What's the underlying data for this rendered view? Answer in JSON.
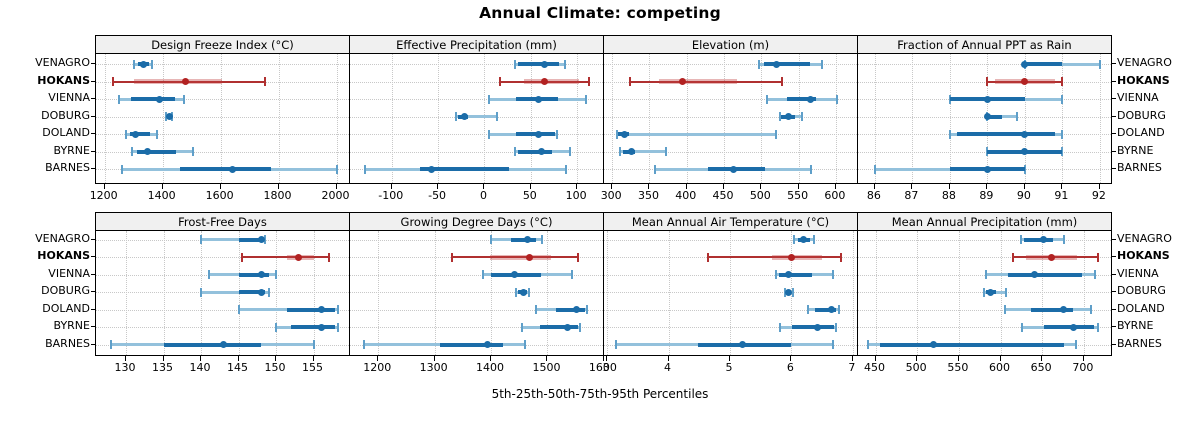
{
  "title": "Annual Climate: competing",
  "caption": "5th-25th-50th-75th-95th Percentiles",
  "colors": {
    "normal_dark": "#1b6ca8",
    "normal_light": "#93c1dc",
    "normal_cap": "#5f9fc9",
    "highlight_dark": "#b22222",
    "highlight_line": "#b03030",
    "highlight_band": "rgba(193,62,62,0.38)",
    "grid": "#c8c8c8",
    "strip_bg": "#f0f0f0",
    "border": "#000000"
  },
  "chart_data": {
    "type": "dotplot-percentiles",
    "percentile_labels": [
      "5th",
      "25th",
      "50th",
      "75th",
      "95th"
    ],
    "rows": [
      "VENAGRO",
      "HOKANS",
      "VIENNA",
      "DOBURG",
      "DOLAND",
      "BYRNE",
      "BARNES"
    ],
    "highlight_row": "HOKANS",
    "grid": "dotted",
    "legend_position": "none",
    "panels": [
      {
        "title": "Design Freeze Index (°C)",
        "grid_row": 0,
        "grid_col": 0,
        "xlim": [
          1170,
          2050
        ],
        "ticks": [
          1200,
          1400,
          1600,
          1800,
          2000
        ],
        "series": [
          [
            1300,
            1315,
            1335,
            1352,
            1362
          ],
          [
            1227,
            1300,
            1480,
            1605,
            1753
          ],
          [
            1248,
            1292,
            1390,
            1442,
            1475
          ],
          [
            1410,
            1416,
            1422,
            1428,
            1432
          ],
          [
            1272,
            1287,
            1305,
            1355,
            1380
          ],
          [
            1295,
            1312,
            1347,
            1445,
            1505
          ],
          [
            1260,
            1460,
            1640,
            1775,
            2000
          ]
        ]
      },
      {
        "title": "Effective Precipitation (mm)",
        "grid_row": 0,
        "grid_col": 1,
        "xlim": [
          -145,
          130
        ],
        "ticks": [
          -100,
          -50,
          0,
          50,
          100
        ],
        "series": [
          [
            33,
            36,
            65,
            80,
            87
          ],
          [
            17,
            43,
            65,
            102,
            113
          ],
          [
            5,
            34,
            58,
            79,
            109
          ],
          [
            -31,
            -29,
            -22,
            -18,
            13
          ],
          [
            5,
            34,
            58,
            76,
            78
          ],
          [
            33,
            36,
            62,
            73,
            92
          ],
          [
            -129,
            -69,
            -57,
            26,
            88
          ]
        ]
      },
      {
        "title": "Elevation (m)",
        "grid_row": 0,
        "grid_col": 2,
        "xlim": [
          289,
          631
        ],
        "ticks": [
          300,
          350,
          400,
          450,
          500,
          550,
          600
        ],
        "series": [
          [
            497,
            504,
            521,
            565,
            582
          ],
          [
            324,
            363,
            394,
            468,
            528
          ],
          [
            507,
            534,
            566,
            574,
            602
          ],
          [
            525,
            527,
            537,
            545,
            554
          ],
          [
            306,
            308,
            317,
            322,
            520
          ],
          [
            311,
            314,
            326,
            331,
            372
          ],
          [
            357,
            428,
            463,
            505,
            566
          ]
        ]
      },
      {
        "title": "Fraction of Annual PPT as Rain",
        "grid_row": 0,
        "grid_col": 3,
        "xlim": [
          85.55,
          92.35
        ],
        "ticks": [
          86,
          87,
          88,
          89,
          90,
          91,
          92
        ],
        "series": [
          [
            90,
            90,
            90,
            91,
            92
          ],
          [
            89,
            89.2,
            90,
            90.8,
            91
          ],
          [
            88,
            88,
            89,
            90,
            91
          ],
          [
            89,
            89,
            89,
            89.4,
            89.8
          ],
          [
            88,
            88.2,
            90,
            90.8,
            91
          ],
          [
            89,
            89,
            90,
            91,
            91
          ],
          [
            86,
            88,
            89,
            90,
            90
          ]
        ]
      },
      {
        "title": "Frost-Free Days",
        "grid_row": 1,
        "grid_col": 0,
        "xlim": [
          126,
          160
        ],
        "ticks": [
          130,
          135,
          140,
          145,
          150,
          155
        ],
        "series": [
          [
            140,
            145,
            148,
            148.3,
            148.5
          ],
          [
            145.5,
            151.5,
            153,
            155,
            157
          ],
          [
            141,
            145,
            148,
            149,
            150
          ],
          [
            140,
            145,
            148,
            148.5,
            149
          ],
          [
            145,
            151.5,
            156,
            157.8,
            158.2
          ],
          [
            150,
            152,
            156,
            157.8,
            158.2
          ],
          [
            128,
            135,
            143,
            148,
            155
          ]
        ]
      },
      {
        "title": "Growing Degree Days (°C)",
        "grid_row": 1,
        "grid_col": 1,
        "xlim": [
          1150,
          1602
        ],
        "ticks": [
          1200,
          1300,
          1400,
          1500,
          1600
        ],
        "series": [
          [
            1400,
            1435,
            1464,
            1480,
            1490
          ],
          [
            1330,
            1398,
            1468,
            1506,
            1555
          ],
          [
            1386,
            1400,
            1442,
            1489,
            1544
          ],
          [
            1444,
            1448,
            1457,
            1464,
            1468
          ],
          [
            1479,
            1516,
            1552,
            1566,
            1570
          ],
          [
            1454,
            1486,
            1535,
            1554,
            1558
          ],
          [
            1175,
            1309,
            1393,
            1421,
            1460
          ]
        ]
      },
      {
        "title": "Mean Annual Air Temperature (°C)",
        "grid_row": 1,
        "grid_col": 2,
        "xlim": [
          2.95,
          7.1
        ],
        "ticks": [
          3,
          4,
          5,
          6,
          7
        ],
        "series": [
          [
            6.05,
            6.1,
            6.2,
            6.3,
            6.37
          ],
          [
            4.64,
            5.68,
            6.0,
            6.49,
            6.81
          ],
          [
            5.75,
            5.79,
            5.96,
            6.34,
            6.67
          ],
          [
            5.89,
            5.92,
            5.96,
            6.0,
            6.02
          ],
          [
            6.27,
            6.39,
            6.65,
            6.73,
            6.77
          ],
          [
            5.81,
            6.01,
            6.42,
            6.7,
            6.73
          ],
          [
            3.15,
            4.48,
            5.2,
            6.0,
            6.67
          ]
        ]
      },
      {
        "title": "Mean Annual Precipitation (mm)",
        "grid_row": 1,
        "grid_col": 3,
        "xlim": [
          429,
          735
        ],
        "ticks": [
          450,
          500,
          550,
          600,
          650,
          700
        ],
        "series": [
          [
            624,
            628,
            652,
            663,
            676
          ],
          [
            615,
            630,
            661,
            692,
            717
          ],
          [
            583,
            609,
            641,
            698,
            713
          ],
          [
            580,
            582,
            588,
            595,
            607
          ],
          [
            605,
            637,
            676,
            687,
            709
          ],
          [
            626,
            652,
            687,
            712,
            717
          ],
          [
            441,
            455,
            520,
            676,
            690
          ]
        ]
      }
    ]
  }
}
